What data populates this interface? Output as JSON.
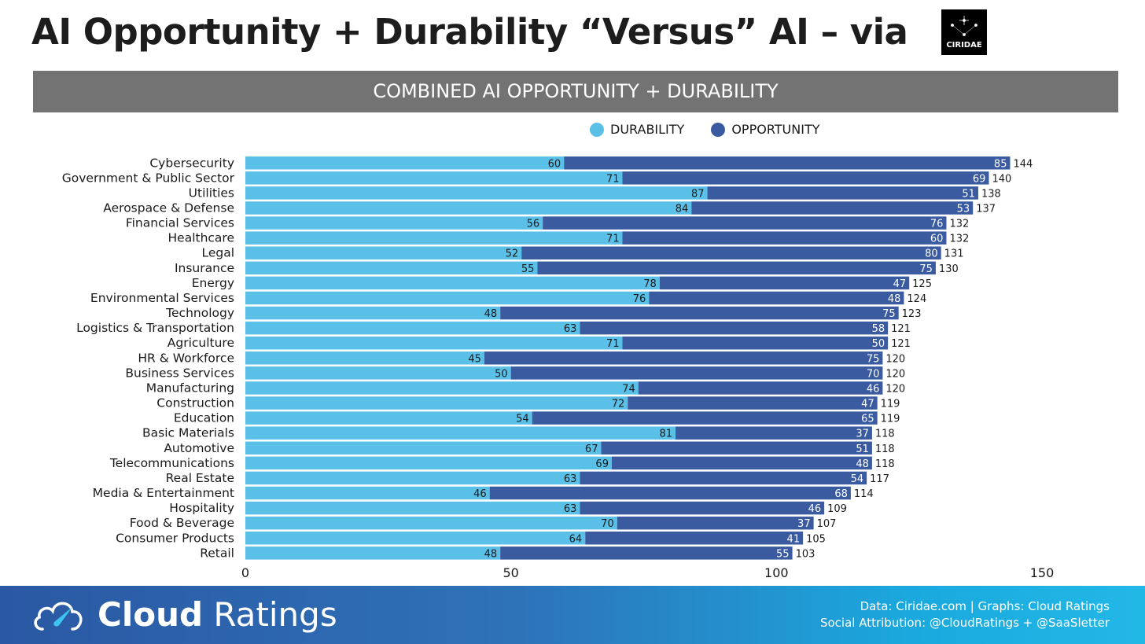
{
  "title": "AI Opportunity + Durability “Versus” AI – via",
  "logo_text": "CIRIDAE",
  "chart_data": {
    "type": "bar",
    "stacked": true,
    "orientation": "horizontal",
    "title": "COMBINED AI OPPORTUNITY + DURABILITY",
    "xlim": [
      0,
      150
    ],
    "xticks": [
      0,
      50,
      100,
      150
    ],
    "legend": "top",
    "colors": {
      "durability": "#5bc0e8",
      "opportunity": "#3a5ba0"
    },
    "series_names": [
      "DURABILITY",
      "OPPORTUNITY"
    ],
    "categories": [
      "Cybersecurity",
      "Government & Public Sector",
      "Utilities",
      "Aerospace & Defense",
      "Financial Services",
      "Healthcare",
      "Legal",
      "Insurance",
      "Energy",
      "Environmental Services",
      "Technology",
      "Logistics & Transportation",
      "Agriculture",
      "HR & Workforce",
      "Business Services",
      "Manufacturing",
      "Construction",
      "Education",
      "Basic Materials",
      "Automotive",
      "Telecommunications",
      "Real Estate",
      "Media & Entertainment",
      "Hospitality",
      "Food & Beverage",
      "Consumer Products",
      "Retail"
    ],
    "durability": [
      60,
      71,
      87,
      84,
      56,
      71,
      52,
      55,
      78,
      76,
      48,
      63,
      71,
      45,
      50,
      74,
      72,
      54,
      81,
      67,
      69,
      63,
      46,
      63,
      70,
      64,
      48
    ],
    "opportunity": [
      85,
      69,
      51,
      53,
      76,
      60,
      80,
      75,
      47,
      48,
      75,
      58,
      50,
      75,
      70,
      46,
      47,
      65,
      37,
      51,
      48,
      54,
      68,
      46,
      37,
      41,
      55
    ],
    "totals": [
      144,
      140,
      138,
      137,
      132,
      132,
      131,
      130,
      125,
      124,
      123,
      121,
      121,
      120,
      120,
      120,
      119,
      119,
      118,
      118,
      118,
      117,
      114,
      109,
      107,
      105,
      103
    ]
  },
  "footer": {
    "brand_bold": "Cloud",
    "brand_light": "Ratings",
    "credit1": "Data: Ciridae.com | Graphs: Cloud Ratings",
    "credit2": "Social Attribution: @CloudRatings + @SaaSletter"
  }
}
